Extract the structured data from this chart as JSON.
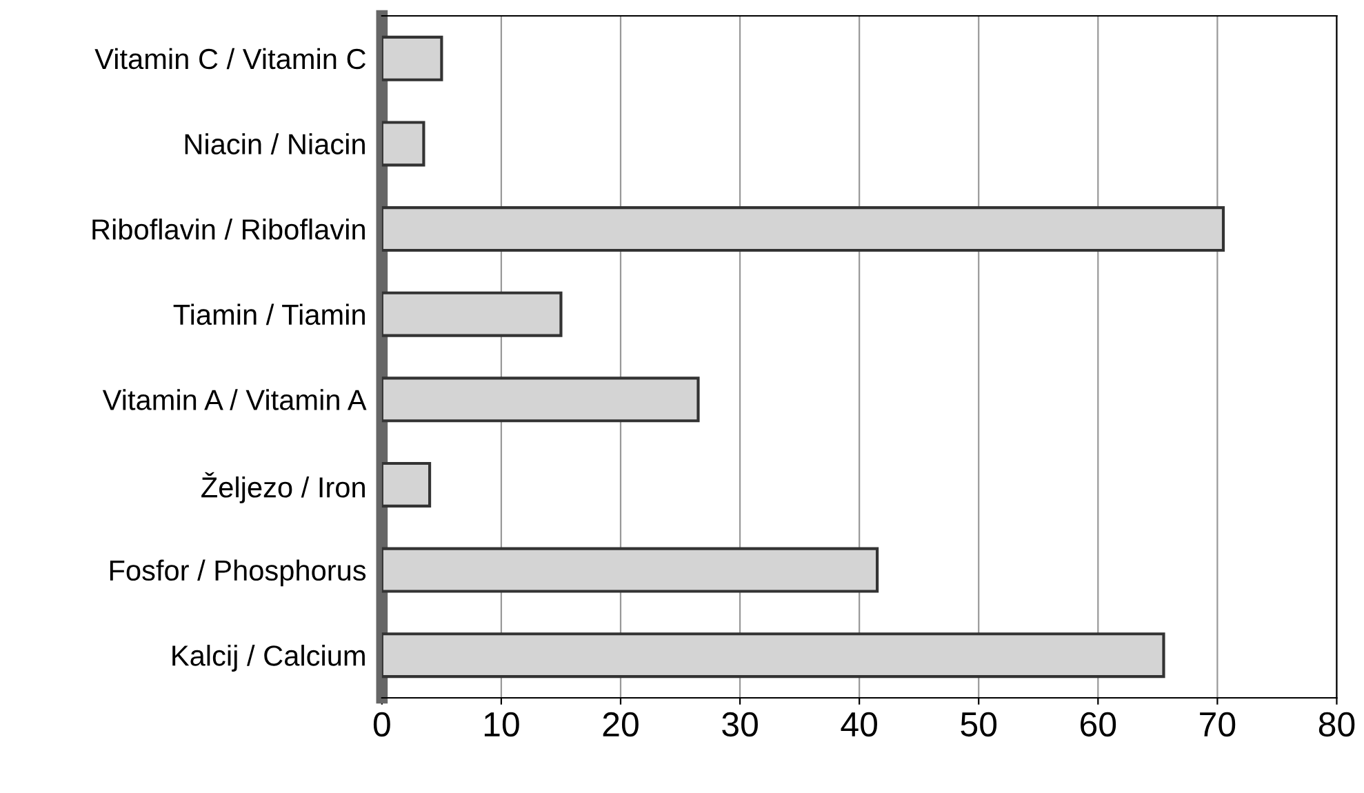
{
  "chart_data": {
    "type": "bar",
    "orientation": "horizontal",
    "categories": [
      "Vitamin C / Vitamin C",
      "Niacin / Niacin",
      "Riboflavin / Riboflavin",
      "Tiamin / Tiamin",
      "Vitamin A / Vitamin A",
      "Željezo / Iron",
      "Fosfor / Phosphorus",
      "Kalcij / Calcium"
    ],
    "values": [
      5,
      3.5,
      70.5,
      15,
      26.5,
      4,
      41.5,
      65.5
    ],
    "color": "#d4d4d4",
    "xlim": [
      0,
      80
    ],
    "xticks": [
      0,
      10,
      20,
      30,
      40,
      50,
      60,
      70,
      80
    ],
    "grid": "x"
  }
}
